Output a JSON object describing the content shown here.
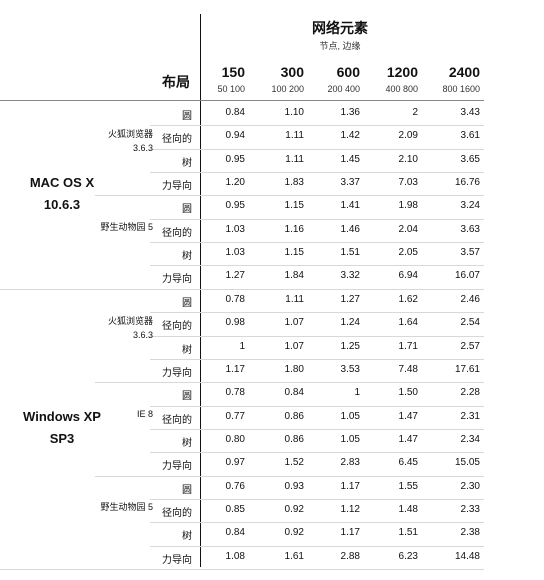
{
  "header": {
    "title": "网络元素",
    "subtitle": "节点, 边缘",
    "layout_label": "布局",
    "columns": [
      {
        "main": "150",
        "sub": "50 100"
      },
      {
        "main": "300",
        "sub": "100 200"
      },
      {
        "main": "600",
        "sub": "200 400"
      },
      {
        "main": "1200",
        "sub": "400 800"
      },
      {
        "main": "2400",
        "sub": "800 1600"
      }
    ]
  },
  "sections": [
    {
      "os": "MAC OS X 10.6.3",
      "browsers": [
        {
          "name": "火狐浏览器 3.6.3",
          "rows": [
            {
              "layout": "圆",
              "values": [
                "0.84",
                "1.10",
                "1.36",
                "2",
                "3.43"
              ]
            },
            {
              "layout": "径向的",
              "values": [
                "0.94",
                "1.11",
                "1.42",
                "2.09",
                "3.61"
              ]
            },
            {
              "layout": "树",
              "values": [
                "0.95",
                "1.11",
                "1.45",
                "2.10",
                "3.65"
              ]
            },
            {
              "layout": "力导向",
              "values": [
                "1.20",
                "1.83",
                "3.37",
                "7.03",
                "16.76"
              ]
            }
          ]
        },
        {
          "name": "野生动物园 5",
          "rows": [
            {
              "layout": "圆",
              "values": [
                "0.95",
                "1.15",
                "1.41",
                "1.98",
                "3.24"
              ]
            },
            {
              "layout": "径向的",
              "values": [
                "1.03",
                "1.16",
                "1.46",
                "2.04",
                "3.63"
              ]
            },
            {
              "layout": "树",
              "values": [
                "1.03",
                "1.15",
                "1.51",
                "2.05",
                "3.57"
              ]
            },
            {
              "layout": "力导向",
              "values": [
                "1.27",
                "1.84",
                "3.32",
                "6.94",
                "16.07"
              ]
            }
          ]
        }
      ]
    },
    {
      "os": "Windows XP SP3",
      "browsers": [
        {
          "name": "火狐浏览器 3.6.3",
          "rows": [
            {
              "layout": "圆",
              "values": [
                "0.78",
                "1.11",
                "1.27",
                "1.62",
                "2.46"
              ]
            },
            {
              "layout": "径向的",
              "values": [
                "0.98",
                "1.07",
                "1.24",
                "1.64",
                "2.54"
              ]
            },
            {
              "layout": "树",
              "values": [
                "1",
                "1.07",
                "1.25",
                "1.71",
                "2.57"
              ]
            },
            {
              "layout": "力导向",
              "values": [
                "1.17",
                "1.80",
                "3.53",
                "7.48",
                "17.61"
              ]
            }
          ]
        },
        {
          "name": "IE 8",
          "rows": [
            {
              "layout": "圆",
              "values": [
                "0.78",
                "0.84",
                "1",
                "1.50",
                "2.28"
              ]
            },
            {
              "layout": "径向的",
              "values": [
                "0.77",
                "0.86",
                "1.05",
                "1.47",
                "2.31"
              ]
            },
            {
              "layout": "树",
              "values": [
                "0.80",
                "0.86",
                "1.05",
                "1.47",
                "2.34"
              ]
            },
            {
              "layout": "力导向",
              "values": [
                "0.97",
                "1.52",
                "2.83",
                "6.45",
                "15.05"
              ]
            }
          ]
        },
        {
          "name": "野生动物园 5",
          "rows": [
            {
              "layout": "圆",
              "values": [
                "0.76",
                "0.93",
                "1.17",
                "1.55",
                "2.30"
              ]
            },
            {
              "layout": "径向的",
              "values": [
                "0.85",
                "0.92",
                "1.12",
                "1.48",
                "2.33"
              ]
            },
            {
              "layout": "树",
              "values": [
                "0.84",
                "0.92",
                "1.17",
                "1.51",
                "2.38"
              ]
            },
            {
              "layout": "力导向",
              "values": [
                "1.08",
                "1.61",
                "2.88",
                "6.23",
                "14.48"
              ]
            }
          ]
        }
      ]
    }
  ]
}
